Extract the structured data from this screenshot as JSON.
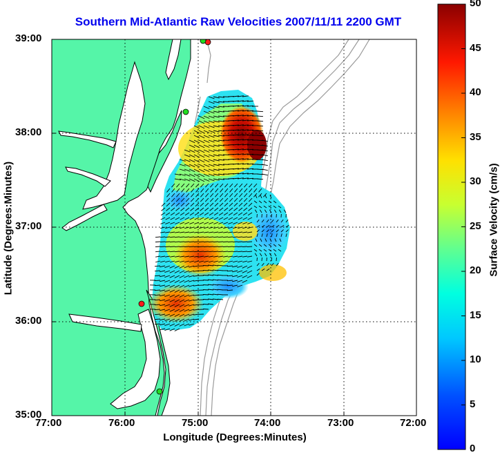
{
  "title": "Southern Mid-Atlantic Raw Velocities 2007/11/11 2200 GMT",
  "x_axis": {
    "label": "Longitude (Degrees:Minutes)",
    "ticks": [
      "77:00",
      "76:00",
      "75:00",
      "74:00",
      "73:00",
      "72:00"
    ]
  },
  "y_axis": {
    "label": "Latitude (Degrees:Minutes)",
    "ticks": [
      "39:00",
      "38:00",
      "37:00",
      "36:00",
      "35:00"
    ]
  },
  "colorbar": {
    "label": "Surface Velocity (cm/s)",
    "ticks": [
      "50",
      "45",
      "40",
      "35",
      "30",
      "25",
      "20",
      "15",
      "10",
      "5",
      "0"
    ],
    "min": 0,
    "max": 50,
    "colormap": "jet"
  },
  "map_extent": {
    "lon_min": -77,
    "lon_max": -72,
    "lat_min": 35,
    "lat_max": 39
  },
  "colors": {
    "land": "#55f5a8",
    "ocean": "#ffffff",
    "coastline": "#000000",
    "bathymetry": "#9a9a9a",
    "title": "#0000ee",
    "radar_station": "#ff1a1a",
    "radar_station_alt": "#22dd22"
  },
  "grid": "dotted",
  "radar_stations": [
    {
      "lon": -74.87,
      "lat": 38.96,
      "color": "red"
    },
    {
      "lon": -74.94,
      "lat": 38.96,
      "color": "green"
    },
    {
      "lon": -75.17,
      "lat": 38.22,
      "color": "green"
    },
    {
      "lon": -75.74,
      "lat": 36.18,
      "color": "red"
    },
    {
      "lon": -75.47,
      "lat": 35.25,
      "color": "green"
    }
  ],
  "velocity_field_description": "Surface current vectors with colored speed field offshore of Delmarva and Virginia"
}
